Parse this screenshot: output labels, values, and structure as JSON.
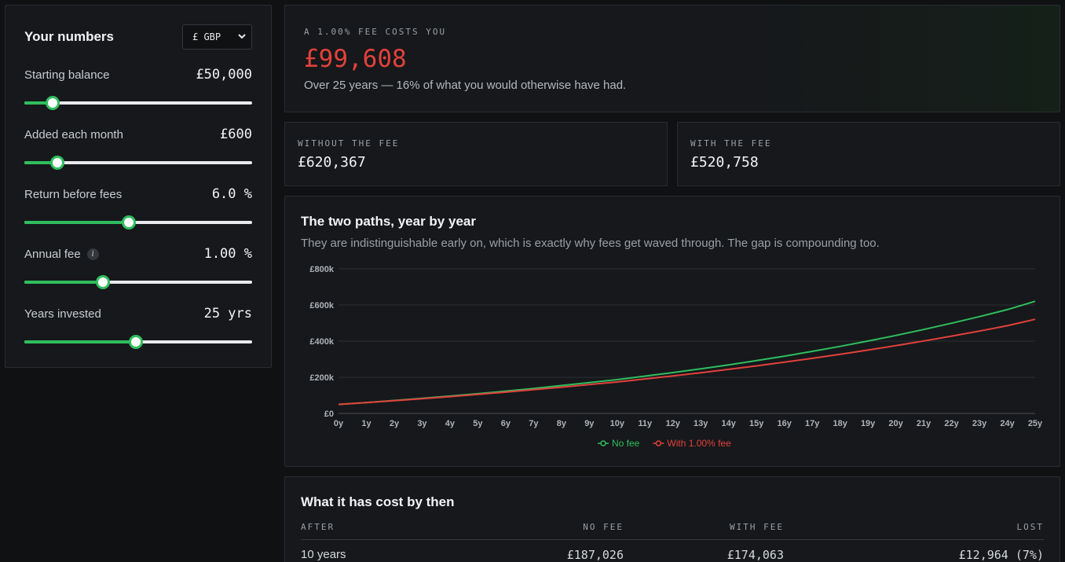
{
  "left": {
    "title": "Your numbers",
    "currency": "£ GBP",
    "rows": [
      {
        "label": "Starting balance",
        "value": "£50,000",
        "level": 0.125
      },
      {
        "label": "Added each month",
        "value": "£600",
        "level": 0.145
      },
      {
        "label": "Return before fees",
        "value": "6.0 %",
        "level": 0.46
      },
      {
        "label": "Annual fee",
        "value": "1.00 %",
        "level": 0.345
      },
      {
        "label": "Years invested",
        "value": "25 yrs",
        "level": 0.49
      }
    ]
  },
  "summary": {
    "eyebrow": "A 1.00% FEE COSTS YOU",
    "cost": "£99,608",
    "note": "Over 25 years — 16% of what you would otherwise have had."
  },
  "cards": {
    "nofee_label": "WITHOUT THE FEE",
    "nofee_value": "£620,367",
    "withfee_label": "WITH THE FEE",
    "withfee_value": "£520,758"
  },
  "chart_section": {
    "title": "The two paths, year by year",
    "subtitle": "They are indistinguishable early on, which is exactly why fees get waved through. The gap is compounding too."
  },
  "chart_data": {
    "type": "line",
    "x": [
      "0y",
      "1y",
      "2y",
      "3y",
      "4y",
      "5y",
      "6y",
      "7y",
      "8y",
      "9y",
      "10y",
      "11y",
      "12y",
      "13y",
      "14y",
      "15y",
      "16y",
      "17y",
      "18y",
      "19y",
      "20y",
      "21y",
      "22y",
      "23y",
      "24y",
      "25y"
    ],
    "series": [
      {
        "name": "No fee",
        "color": "#2fbe5e",
        "values": [
          50000,
          60484,
          71613,
          83432,
          95977,
          109287,
          123398,
          138355,
          154198,
          170973,
          187026,
          206453,
          226017,
          246808,
          268862,
          292249,
          317034,
          343280,
          371056,
          400436,
          431494,
          464313,
          498981,
          535590,
          574242,
          620367
        ]
      },
      {
        "name": "With 1.00% fee",
        "color": "#e3413b",
        "values": [
          50000,
          59950,
          70406,
          81393,
          92936,
          105062,
          117798,
          131173,
          145216,
          159960,
          174063,
          190720,
          207570,
          225229,
          243738,
          263138,
          283470,
          304779,
          327112,
          350515,
          375038,
          400732,
          427651,
          455853,
          485397,
          520758
        ]
      }
    ],
    "y_ticks": [
      "£0",
      "£200k",
      "£400k",
      "£600k",
      "£800k"
    ],
    "ylim": [
      0,
      800000
    ],
    "grid": true,
    "legend": "bottom"
  },
  "table_section": {
    "title": "What it has cost by then",
    "headers": [
      "AFTER",
      "NO FEE",
      "WITH FEE",
      "LOST"
    ],
    "rows": [
      {
        "after": "10 years",
        "nofee": "£187,026",
        "withfee": "£174,063",
        "lost": "£12,964 (7%)"
      }
    ]
  }
}
